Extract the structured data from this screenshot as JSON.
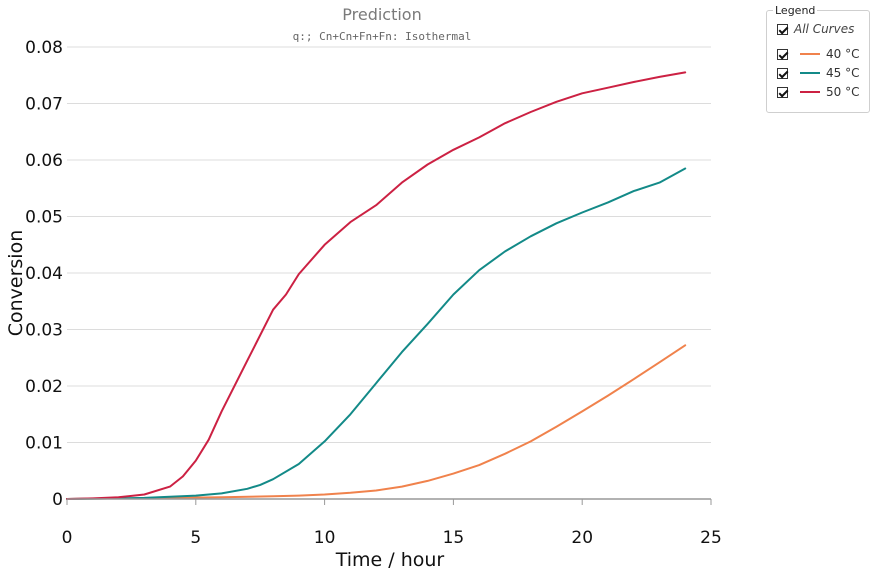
{
  "chart_data": {
    "type": "line",
    "title": "Prediction",
    "subtitle": "q:; Cn+Cn+Fn+Fn: Isothermal",
    "xlabel": "Time / hour",
    "ylabel": "Conversion",
    "xlim": [
      0,
      25
    ],
    "ylim": [
      0,
      0.08
    ],
    "xticks": [
      "0",
      "5",
      "10",
      "15",
      "20",
      "25"
    ],
    "yticks": [
      "0",
      "0.01",
      "0.02",
      "0.03",
      "0.04",
      "0.05",
      "0.06",
      "0.07",
      "0.08"
    ],
    "grid": "horizontal",
    "series": [
      {
        "name": "40 °C",
        "color": "#f0824c",
        "x": [
          0,
          2,
          4,
          6,
          8,
          9,
          10,
          11,
          12,
          13,
          14,
          15,
          16,
          17,
          18,
          19,
          20,
          21,
          22,
          23,
          24
        ],
        "y": [
          0,
          0.0001,
          0.0002,
          0.0003,
          0.0005,
          0.0006,
          0.0008,
          0.0011,
          0.0015,
          0.0022,
          0.0032,
          0.0045,
          0.006,
          0.008,
          0.0102,
          0.0128,
          0.0155,
          0.0183,
          0.0212,
          0.0242,
          0.0272
        ]
      },
      {
        "name": "45 °C",
        "color": "#138a88",
        "x": [
          0,
          2,
          3,
          4,
          5,
          5.5,
          6,
          7,
          7.5,
          8,
          9,
          10,
          11,
          12,
          13,
          14,
          15,
          16,
          17,
          18,
          19,
          20,
          21,
          22,
          23,
          24
        ],
        "y": [
          0,
          0.0001,
          0.0002,
          0.0004,
          0.0006,
          0.0008,
          0.001,
          0.0018,
          0.0025,
          0.0035,
          0.0062,
          0.0102,
          0.015,
          0.0205,
          0.026,
          0.031,
          0.0362,
          0.0405,
          0.0438,
          0.0465,
          0.0488,
          0.0507,
          0.0525,
          0.0545,
          0.056,
          0.0585
        ]
      },
      {
        "name": "50 °C",
        "color": "#cc2143",
        "x": [
          0,
          1,
          2,
          3,
          4,
          4.5,
          5,
          5.5,
          6,
          7,
          8,
          8.5,
          9,
          10,
          11,
          12,
          13,
          14,
          15,
          16,
          17,
          18,
          19,
          20,
          21,
          22,
          23,
          24
        ],
        "y": [
          0,
          0.0001,
          0.0003,
          0.0008,
          0.0022,
          0.004,
          0.0068,
          0.0105,
          0.0155,
          0.0245,
          0.0335,
          0.0362,
          0.0398,
          0.045,
          0.049,
          0.052,
          0.056,
          0.0592,
          0.0618,
          0.064,
          0.0665,
          0.0685,
          0.0703,
          0.0718,
          0.0728,
          0.0738,
          0.0747,
          0.0755
        ]
      }
    ]
  },
  "legend": {
    "title": "Legend",
    "all_label": "All Curves",
    "items": [
      {
        "label": "40 °C",
        "color": "#f0824c"
      },
      {
        "label": "45 °C",
        "color": "#138a88"
      },
      {
        "label": "50 °C",
        "color": "#cc2143"
      }
    ]
  }
}
